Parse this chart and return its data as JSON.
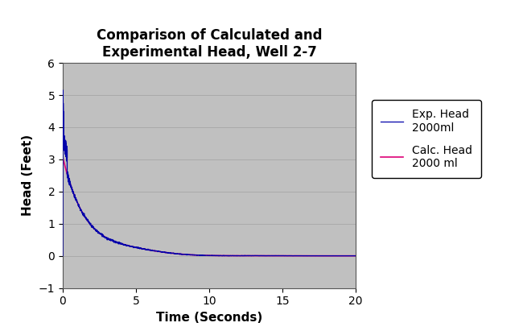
{
  "title": "Comparison of Calculated and\nExperimental Head, Well 2-7",
  "xlabel": "Time (Seconds)",
  "ylabel": "Head (Feet)",
  "xlim": [
    0,
    20
  ],
  "ylim": [
    -1,
    6
  ],
  "yticks": [
    -1,
    0,
    1,
    2,
    3,
    4,
    5,
    6
  ],
  "xticks": [
    0,
    5,
    10,
    15,
    20
  ],
  "bg_color": "#c0c0c0",
  "exp_color": "#0000aa",
  "calc_color": "#dd0077",
  "legend_labels": [
    "Exp. Head\n2000ml",
    "Calc. Head\n2000 ml"
  ],
  "title_fontsize": 12,
  "axis_label_fontsize": 11,
  "tick_fontsize": 10
}
